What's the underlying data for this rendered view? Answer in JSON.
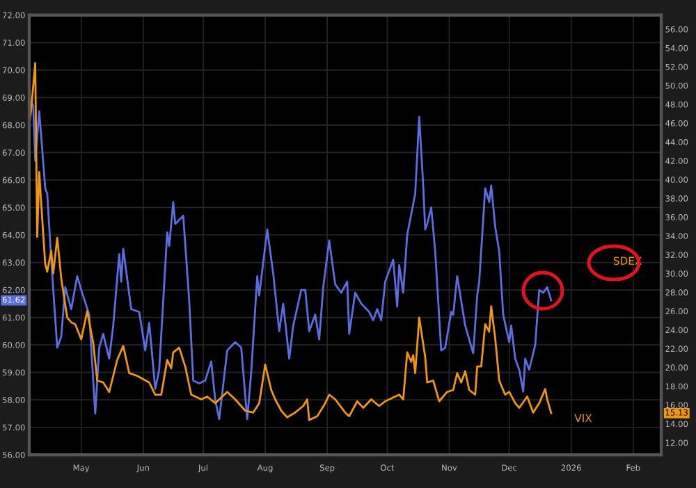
{
  "chart_data": {
    "type": "line",
    "xlim": [
      "2025-04-05",
      "2026-02-15"
    ],
    "xticks": [
      {
        "value": "2025-05-01",
        "label": "May"
      },
      {
        "value": "2025-06-01",
        "label": "Jun"
      },
      {
        "value": "2025-07-01",
        "label": "Jul"
      },
      {
        "value": "2025-08-01",
        "label": "Aug"
      },
      {
        "value": "2025-09-01",
        "label": "Sep"
      },
      {
        "value": "2025-10-01",
        "label": "Oct"
      },
      {
        "value": "2025-11-01",
        "label": "Nov"
      },
      {
        "value": "2025-12-01",
        "label": "Dec"
      },
      {
        "value": "2026-01-01",
        "label": "2026"
      },
      {
        "value": "2026-02-01",
        "label": "Feb"
      }
    ],
    "ylim": [
      56,
      72
    ],
    "yticks": [
      {
        "value": 56,
        "label": "56.00"
      },
      {
        "value": 57,
        "label": "57.00"
      },
      {
        "value": 58,
        "label": "58.00"
      },
      {
        "value": 59,
        "label": "59.00"
      },
      {
        "value": 60,
        "label": "60.00"
      },
      {
        "value": 61,
        "label": "61.00"
      },
      {
        "value": 62,
        "label": "62.00"
      },
      {
        "value": 63,
        "label": "63.00"
      },
      {
        "value": 64,
        "label": "64.00"
      },
      {
        "value": 65,
        "label": "65.00"
      },
      {
        "value": 66,
        "label": "66.00"
      },
      {
        "value": 67,
        "label": "67.00"
      },
      {
        "value": 68,
        "label": "68.00"
      },
      {
        "value": 69,
        "label": "69.00"
      },
      {
        "value": 70,
        "label": "70.00"
      },
      {
        "value": 71,
        "label": "71.00"
      },
      {
        "value": 72,
        "label": "72.00"
      }
    ],
    "y2lim": [
      10.7,
      57.5
    ],
    "y2ticks": [
      {
        "value": 12,
        "label": "12.00"
      },
      {
        "value": 14,
        "label": "14.00"
      },
      {
        "value": 16,
        "label": "16.00"
      },
      {
        "value": 18,
        "label": "18.00"
      },
      {
        "value": 20,
        "label": "20.00"
      },
      {
        "value": 22,
        "label": "22.00"
      },
      {
        "value": 24,
        "label": "24.00"
      },
      {
        "value": 26,
        "label": "26.00"
      },
      {
        "value": 28,
        "label": "28.00"
      },
      {
        "value": 30,
        "label": "30.00"
      },
      {
        "value": 32,
        "label": "32.00"
      },
      {
        "value": 34,
        "label": "34.00"
      },
      {
        "value": 36,
        "label": "36.00"
      },
      {
        "value": 38,
        "label": "38.00"
      },
      {
        "value": 40,
        "label": "40.00"
      },
      {
        "value": 42,
        "label": "42.00"
      },
      {
        "value": 44,
        "label": "44.00"
      },
      {
        "value": 46,
        "label": "46.00"
      },
      {
        "value": 48,
        "label": "48.00"
      },
      {
        "value": 50,
        "label": "50.00"
      },
      {
        "value": 52,
        "label": "52.00"
      },
      {
        "value": 54,
        "label": "54.00"
      },
      {
        "value": 56,
        "label": "56.00"
      }
    ],
    "annotations": [
      "61.62",
      "15.13"
    ],
    "grid": true,
    "legend": false,
    "series": [
      {
        "name": "SDEX",
        "color": "#5b6ee1",
        "x": [
          "2025-04-05",
          "2025-04-07",
          "2025-04-08",
          "2025-04-10",
          "2025-04-13",
          "2025-04-14",
          "2025-04-16",
          "2025-04-19",
          "2025-04-21",
          "2025-04-23",
          "2025-04-26",
          "2025-04-29",
          "2025-05-01",
          "2025-05-05",
          "2025-05-08",
          "2025-05-10",
          "2025-05-12",
          "2025-05-15",
          "2025-05-17",
          "2025-05-20",
          "2025-05-21",
          "2025-05-22",
          "2025-05-26",
          "2025-05-30",
          "2025-06-02",
          "2025-06-04",
          "2025-06-07",
          "2025-06-09",
          "2025-06-13",
          "2025-06-14",
          "2025-06-16",
          "2025-06-17",
          "2025-06-21",
          "2025-06-24",
          "2025-06-26",
          "2025-06-29",
          "2025-07-02",
          "2025-07-05",
          "2025-07-07",
          "2025-07-09",
          "2025-07-13",
          "2025-07-17",
          "2025-07-20",
          "2025-07-23",
          "2025-07-25",
          "2025-07-28",
          "2025-07-29",
          "2025-08-02",
          "2025-08-05",
          "2025-08-08",
          "2025-08-10",
          "2025-08-13",
          "2025-08-15",
          "2025-08-19",
          "2025-08-21",
          "2025-08-23",
          "2025-08-26",
          "2025-08-28",
          "2025-08-30",
          "2025-09-02",
          "2025-09-05",
          "2025-09-08",
          "2025-09-11",
          "2025-09-12",
          "2025-09-15",
          "2025-09-18",
          "2025-09-22",
          "2025-09-24",
          "2025-09-26",
          "2025-09-28",
          "2025-09-30",
          "2025-10-04",
          "2025-10-06",
          "2025-10-07",
          "2025-10-09",
          "2025-10-11",
          "2025-10-15",
          "2025-10-17",
          "2025-10-19",
          "2025-10-20",
          "2025-10-21",
          "2025-10-23",
          "2025-10-25",
          "2025-10-28",
          "2025-10-30",
          "2025-11-02",
          "2025-11-03",
          "2025-11-05",
          "2025-11-07",
          "2025-11-09",
          "2025-11-13",
          "2025-11-15",
          "2025-11-16",
          "2025-11-19",
          "2025-11-21",
          "2025-11-22",
          "2025-11-24",
          "2025-11-26",
          "2025-11-28",
          "2025-12-01",
          "2025-12-02",
          "2025-12-04",
          "2025-12-06",
          "2025-12-08",
          "2025-12-09",
          "2025-12-11",
          "2025-12-14",
          "2025-12-16",
          "2025-12-18",
          "2025-12-20",
          "2025-12-22"
        ],
        "values": [
          69.0,
          68.7,
          66.7,
          68.5,
          65.7,
          65.5,
          63.1,
          59.9,
          60.3,
          62.1,
          61.3,
          62.5,
          62.0,
          61.1,
          57.5,
          59.9,
          60.4,
          59.5,
          60.7,
          63.3,
          62.3,
          63.5,
          61.3,
          61.2,
          59.8,
          60.8,
          58.4,
          59.1,
          64.1,
          63.6,
          65.2,
          64.4,
          64.7,
          61.6,
          58.7,
          58.6,
          58.7,
          59.4,
          58.0,
          57.3,
          59.8,
          60.1,
          59.9,
          57.3,
          59.0,
          62.5,
          61.8,
          64.2,
          62.6,
          60.5,
          61.5,
          59.5,
          60.7,
          62.0,
          62.0,
          60.5,
          61.1,
          60.2,
          62.1,
          63.8,
          62.2,
          61.9,
          62.3,
          60.4,
          61.9,
          61.5,
          61.2,
          60.9,
          61.3,
          60.9,
          62.3,
          63.1,
          61.4,
          62.9,
          61.9,
          64.0,
          65.5,
          68.3,
          65.8,
          64.2,
          64.4,
          65.0,
          63.4,
          59.8,
          59.9,
          61.2,
          61.1,
          62.5,
          61.6,
          60.7,
          59.7,
          61.8,
          62.3,
          65.7,
          65.2,
          65.8,
          64.3,
          63.4,
          61.1,
          60.1,
          60.7,
          59.5,
          59.1,
          58.3,
          59.5,
          59.1,
          60.0,
          62.0,
          61.9,
          62.1,
          61.62
        ]
      },
      {
        "name": "VIX",
        "color": "#f0960f",
        "axis": "y2",
        "x": [
          "2025-04-05",
          "2025-04-06",
          "2025-04-08",
          "2025-04-09",
          "2025-04-10",
          "2025-04-11",
          "2025-04-13",
          "2025-04-14",
          "2025-04-16",
          "2025-04-17",
          "2025-04-19",
          "2025-04-21",
          "2025-04-24",
          "2025-04-26",
          "2025-04-28",
          "2025-05-01",
          "2025-05-04",
          "2025-05-07",
          "2025-05-09",
          "2025-05-12",
          "2025-05-15",
          "2025-05-19",
          "2025-05-22",
          "2025-05-25",
          "2025-05-29",
          "2025-06-04",
          "2025-06-07",
          "2025-06-10",
          "2025-06-13",
          "2025-06-15",
          "2025-06-16",
          "2025-06-19",
          "2025-06-22",
          "2025-06-25",
          "2025-06-30",
          "2025-07-03",
          "2025-07-07",
          "2025-07-13",
          "2025-07-17",
          "2025-07-22",
          "2025-07-26",
          "2025-07-29",
          "2025-08-01",
          "2025-08-04",
          "2025-08-06",
          "2025-08-09",
          "2025-08-12",
          "2025-08-16",
          "2025-08-20",
          "2025-08-22",
          "2025-08-23",
          "2025-08-27",
          "2025-08-31",
          "2025-09-02",
          "2025-09-05",
          "2025-09-10",
          "2025-09-12",
          "2025-09-16",
          "2025-09-19",
          "2025-09-23",
          "2025-09-27",
          "2025-09-30",
          "2025-10-07",
          "2025-10-09",
          "2025-10-11",
          "2025-10-13",
          "2025-10-14",
          "2025-10-15",
          "2025-10-17",
          "2025-10-20",
          "2025-10-21",
          "2025-10-24",
          "2025-10-27",
          "2025-10-31",
          "2025-11-03",
          "2025-11-05",
          "2025-11-07",
          "2025-11-09",
          "2025-11-11",
          "2025-11-14",
          "2025-11-15",
          "2025-11-17",
          "2025-11-19",
          "2025-11-21",
          "2025-11-22",
          "2025-11-24",
          "2025-11-26",
          "2025-11-29",
          "2025-12-01",
          "2025-12-04",
          "2025-12-06",
          "2025-12-10",
          "2025-12-13",
          "2025-12-16",
          "2025-12-19",
          "2025-12-20",
          "2025-12-22"
        ],
        "values": [
          45.8,
          47.5,
          52.4,
          33.9,
          40.8,
          37.4,
          31.0,
          30.2,
          32.4,
          30.0,
          33.8,
          29.5,
          25.3,
          24.8,
          24.6,
          23.0,
          26.0,
          22.6,
          18.6,
          18.4,
          17.4,
          20.8,
          22.3,
          19.4,
          19.1,
          18.4,
          17.1,
          17.1,
          20.8,
          19.9,
          21.6,
          22.1,
          20.1,
          17.1,
          16.6,
          16.9,
          16.2,
          17.4,
          16.6,
          15.4,
          15.2,
          16.2,
          20.3,
          17.6,
          16.6,
          15.4,
          14.7,
          15.2,
          15.9,
          16.6,
          14.4,
          14.8,
          16.2,
          17.1,
          16.6,
          15.2,
          14.8,
          16.4,
          15.7,
          16.6,
          15.9,
          16.4,
          17.1,
          16.6,
          21.6,
          20.6,
          21.3,
          19.4,
          25.3,
          21.1,
          18.4,
          18.6,
          16.4,
          17.4,
          17.6,
          19.4,
          18.4,
          19.6,
          17.6,
          17.1,
          20.1,
          20.1,
          24.6,
          23.8,
          26.5,
          23.1,
          18.6,
          17.1,
          17.4,
          16.2,
          15.7,
          16.9,
          15.2,
          16.2,
          17.7,
          16.6,
          15.13
        ]
      }
    ]
  }
}
